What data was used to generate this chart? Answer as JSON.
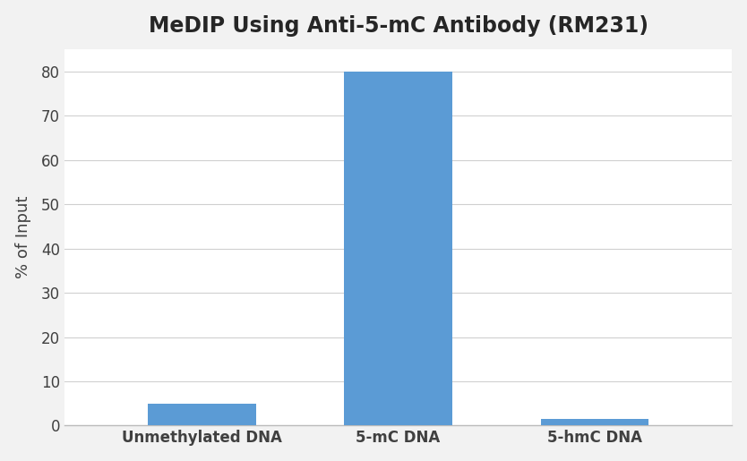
{
  "title": "MeDIP Using Anti-5-mC Antibody (RM231)",
  "categories": [
    "Unmethylated DNA",
    "5-mC DNA",
    "5-hmC DNA"
  ],
  "values": [
    5,
    80,
    1.5
  ],
  "bar_color": "#5B9BD5",
  "ylabel": "% of Input",
  "ylim": [
    0,
    85
  ],
  "yticks": [
    0,
    10,
    20,
    30,
    40,
    50,
    60,
    70,
    80
  ],
  "title_fontsize": 17,
  "axis_label_fontsize": 13,
  "tick_fontsize": 12,
  "background_color": "#F2F2F2",
  "plot_bg_color": "#FFFFFF",
  "grid_color": "#D0D0D0",
  "bar_width": 0.55,
  "title_color": "#262626",
  "label_color": "#404040"
}
